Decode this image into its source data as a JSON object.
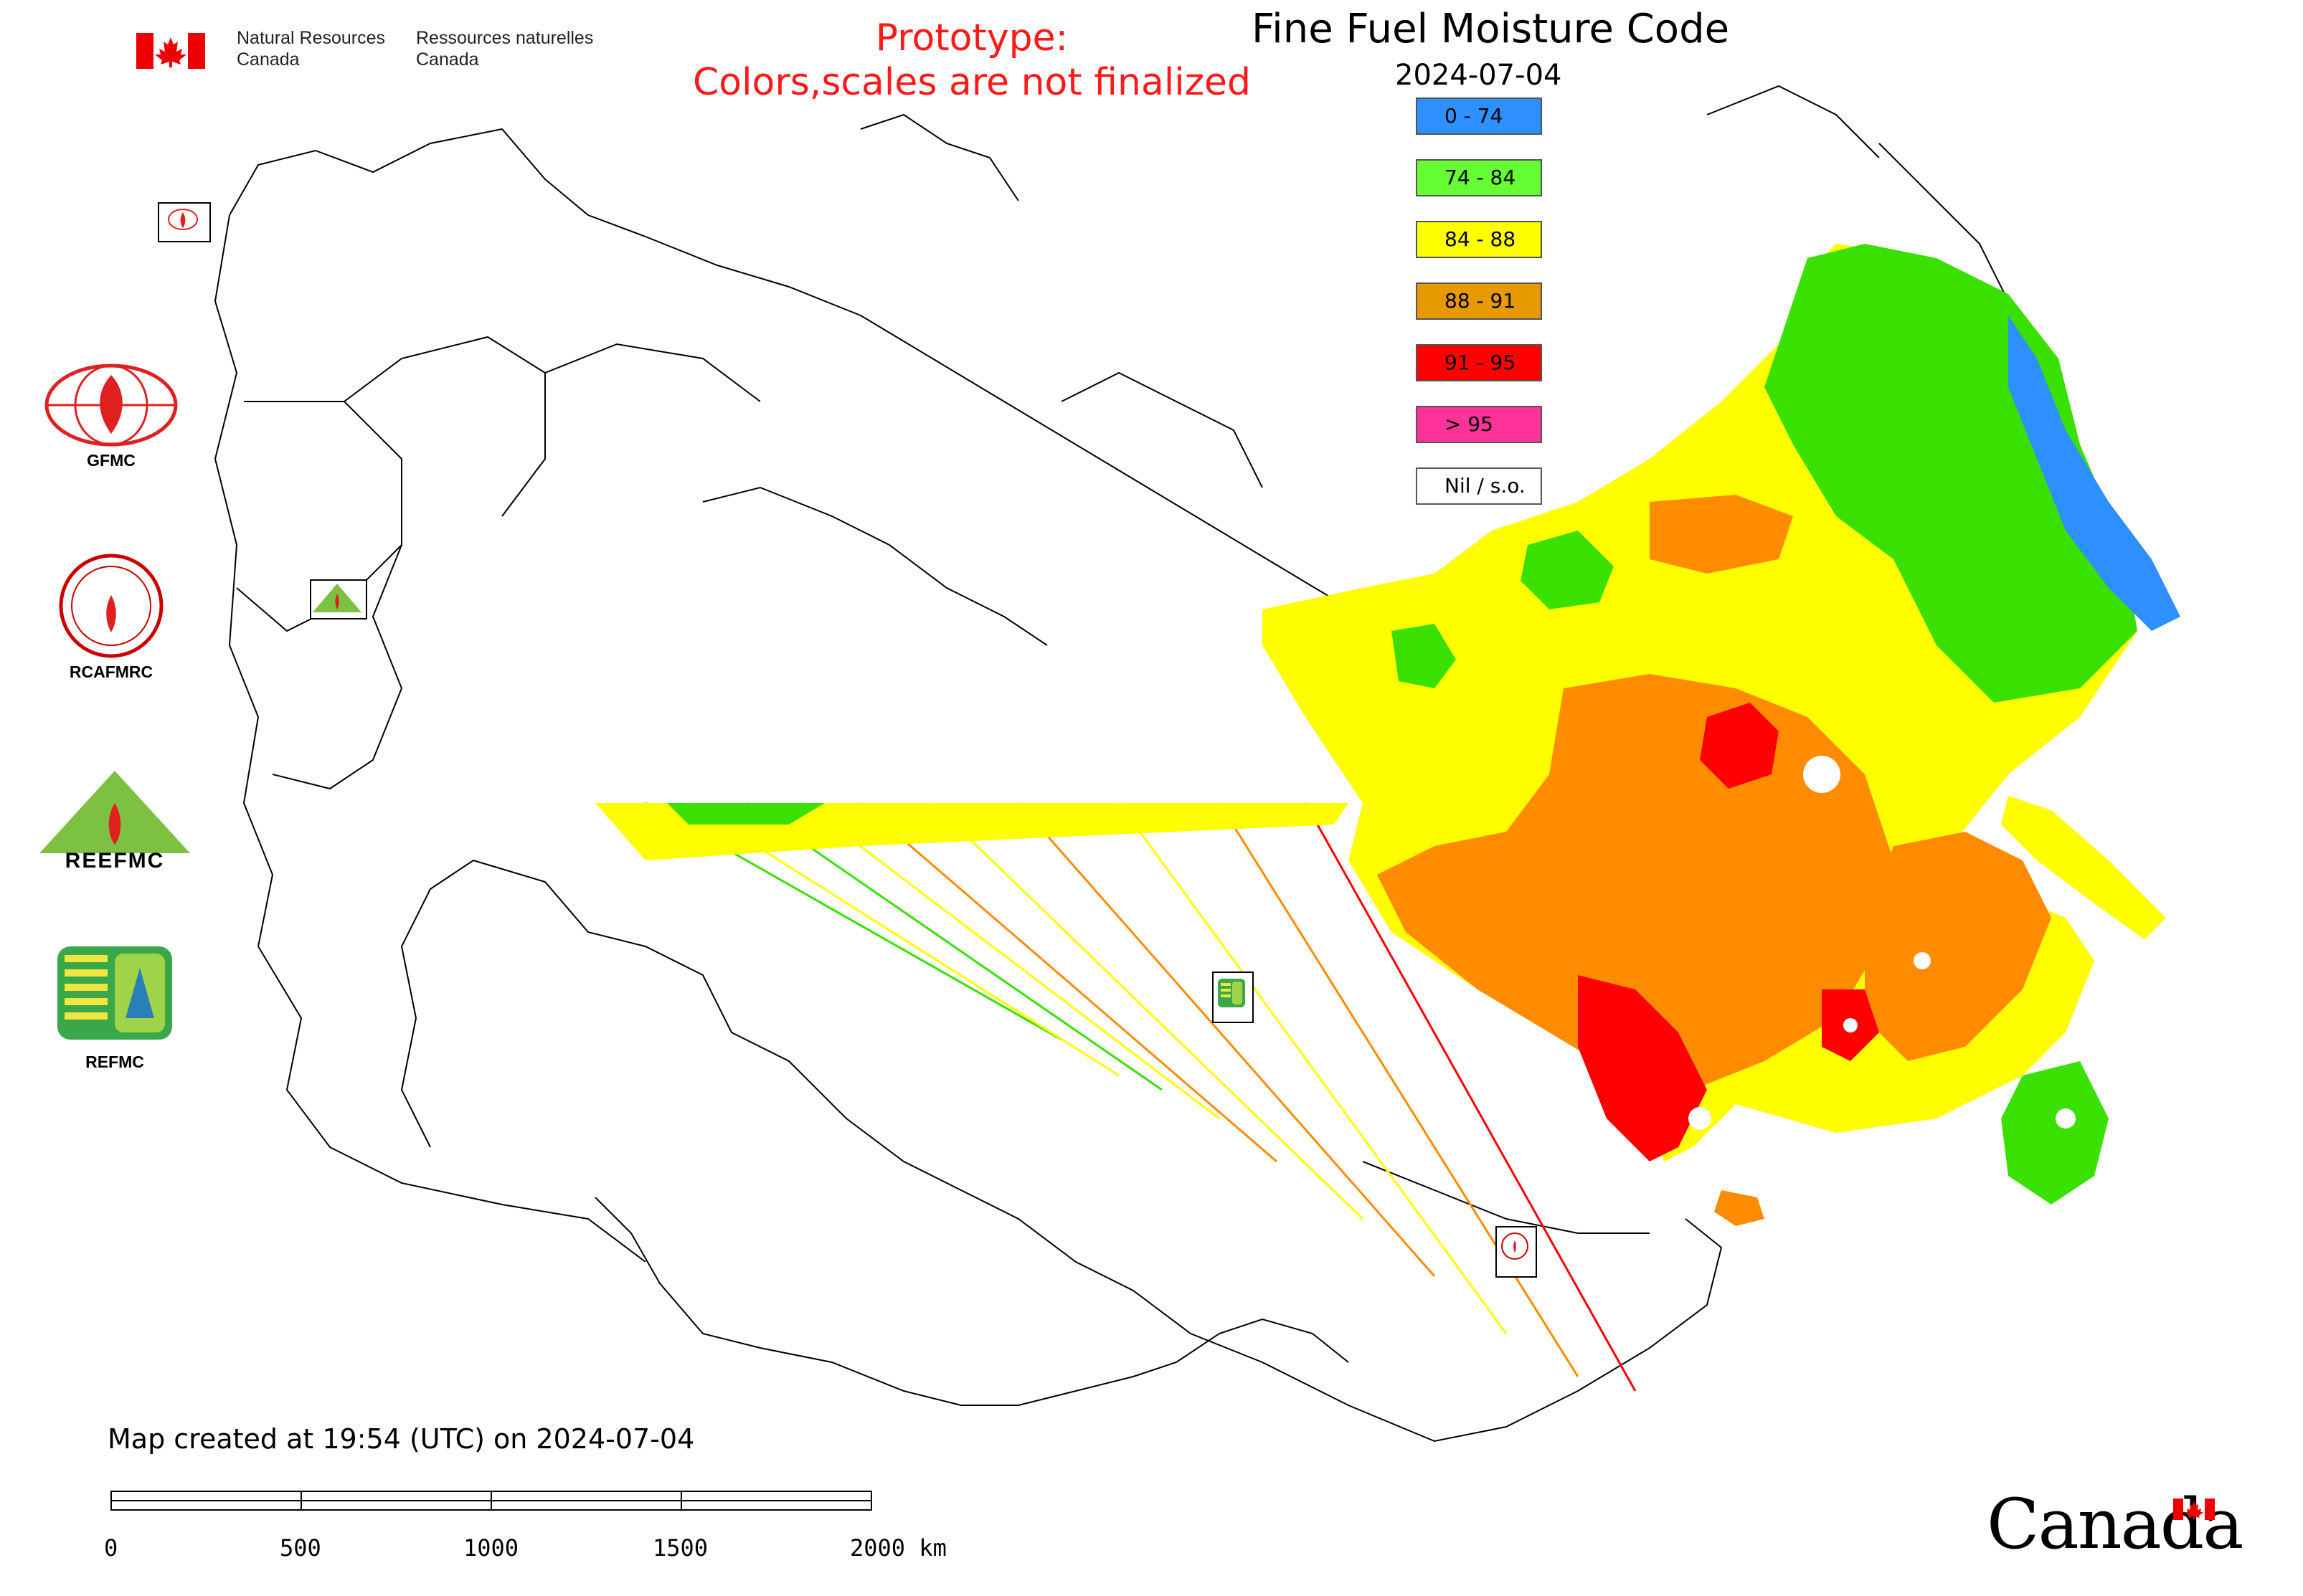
{
  "header": {
    "title": "Fine Fuel Moisture Code",
    "date": "2024-07-04",
    "prototype_note": [
      "Prototype:",
      "Colors,scales are not finalized"
    ]
  },
  "agency": {
    "name_en": [
      "Natural Resources",
      "Canada"
    ],
    "name_fr": [
      "Ressources naturelles",
      "Canada"
    ],
    "wordmark": "Canada"
  },
  "legend": [
    {
      "label": "0 - 74",
      "color": "#2e8fff"
    },
    {
      "label": "74 - 84",
      "color": "#66ff33"
    },
    {
      "label": "84 - 88",
      "color": "#ffff00"
    },
    {
      "label": "88 - 91",
      "color": "#e69900"
    },
    {
      "label": "91 - 95",
      "color": "#ff0000"
    },
    {
      "label": "> 95",
      "color": "#ff3399"
    },
    {
      "label": "Nil / s.o.",
      "color": "#ffffff"
    }
  ],
  "logos": [
    {
      "label": "GFMC"
    },
    {
      "label": "RCAFMRC"
    },
    {
      "label": "REEFMC"
    },
    {
      "label": "REFMC"
    }
  ],
  "footer": {
    "created": "Map created at 19:54 (UTC) on 2024-07-04"
  },
  "scale_bar": {
    "ticks": [
      "0",
      "500",
      "1000",
      "1500",
      "2000 km"
    ]
  },
  "map_colors": {
    "blue": "#2e8fff",
    "green": "#39e000",
    "yellow": "#ffff00",
    "orange": "#ff8c00",
    "red": "#ff0000"
  }
}
